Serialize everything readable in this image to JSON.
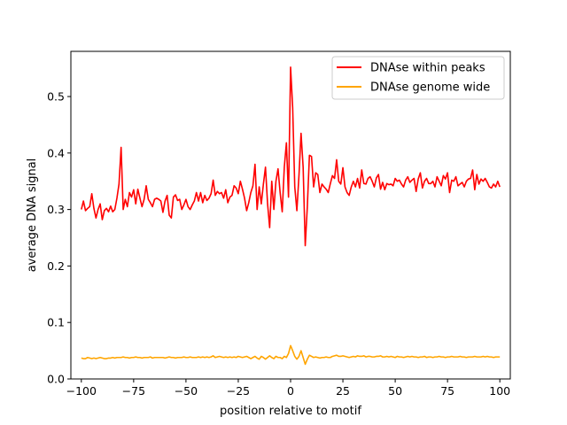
{
  "chart_data": {
    "type": "line",
    "title": "",
    "xlabel": "position relative to motif",
    "ylabel": "average DNA signal",
    "xlim": [
      -105,
      105
    ],
    "ylim": [
      0.0,
      0.58
    ],
    "xticks": [
      -100,
      -75,
      -50,
      -25,
      0,
      25,
      50,
      75,
      100
    ],
    "xtick_labels": [
      "−100",
      "−75",
      "−50",
      "−25",
      "0",
      "25",
      "50",
      "75",
      "100"
    ],
    "yticks": [
      0.0,
      0.1,
      0.2,
      0.3,
      0.4,
      0.5
    ],
    "ytick_labels": [
      "0.0",
      "0.1",
      "0.2",
      "0.3",
      "0.4",
      "0.5"
    ],
    "grid": false,
    "legend_position": "top-right",
    "series": [
      {
        "name": "DNAse within peaks",
        "color": "#ff0000",
        "x_start": -100,
        "x_step": 1,
        "values": [
          0.3,
          0.315,
          0.298,
          0.302,
          0.305,
          0.328,
          0.302,
          0.285,
          0.3,
          0.31,
          0.282,
          0.298,
          0.302,
          0.296,
          0.306,
          0.296,
          0.3,
          0.32,
          0.345,
          0.41,
          0.3,
          0.318,
          0.305,
          0.33,
          0.322,
          0.335,
          0.31,
          0.336,
          0.32,
          0.305,
          0.318,
          0.342,
          0.318,
          0.312,
          0.305,
          0.318,
          0.32,
          0.318,
          0.315,
          0.295,
          0.315,
          0.325,
          0.29,
          0.285,
          0.322,
          0.326,
          0.316,
          0.318,
          0.3,
          0.308,
          0.318,
          0.305,
          0.3,
          0.308,
          0.315,
          0.33,
          0.315,
          0.33,
          0.312,
          0.325,
          0.316,
          0.32,
          0.328,
          0.352,
          0.325,
          0.332,
          0.328,
          0.33,
          0.32,
          0.335,
          0.312,
          0.322,
          0.325,
          0.342,
          0.338,
          0.328,
          0.35,
          0.336,
          0.32,
          0.298,
          0.312,
          0.33,
          0.342,
          0.38,
          0.3,
          0.34,
          0.31,
          0.345,
          0.375,
          0.31,
          0.268,
          0.35,
          0.3,
          0.35,
          0.372,
          0.33,
          0.296,
          0.375,
          0.418,
          0.322,
          0.552,
          0.48,
          0.34,
          0.298,
          0.36,
          0.435,
          0.375,
          0.236,
          0.305,
          0.396,
          0.394,
          0.34,
          0.365,
          0.362,
          0.33,
          0.345,
          0.34,
          0.336,
          0.33,
          0.346,
          0.36,
          0.355,
          0.388,
          0.35,
          0.345,
          0.374,
          0.34,
          0.33,
          0.325,
          0.34,
          0.35,
          0.34,
          0.355,
          0.338,
          0.37,
          0.346,
          0.345,
          0.355,
          0.358,
          0.35,
          0.34,
          0.356,
          0.362,
          0.336,
          0.348,
          0.335,
          0.346,
          0.344,
          0.345,
          0.342,
          0.355,
          0.35,
          0.352,
          0.345,
          0.34,
          0.352,
          0.358,
          0.348,
          0.352,
          0.355,
          0.332,
          0.354,
          0.365,
          0.338,
          0.35,
          0.355,
          0.346,
          0.346,
          0.35,
          0.34,
          0.358,
          0.35,
          0.342,
          0.36,
          0.354,
          0.365,
          0.33,
          0.352,
          0.35,
          0.358,
          0.342,
          0.345,
          0.348,
          0.34,
          0.35,
          0.354,
          0.355,
          0.37,
          0.335,
          0.362,
          0.345,
          0.354,
          0.35,
          0.355,
          0.348,
          0.34,
          0.338,
          0.345,
          0.34,
          0.35,
          0.34
        ]
      },
      {
        "name": "DNAse genome wide",
        "color": "#ffa500",
        "x_start": -100,
        "x_step": 1,
        "values": [
          0.037,
          0.036,
          0.036,
          0.038,
          0.037,
          0.036,
          0.037,
          0.036,
          0.037,
          0.038,
          0.037,
          0.036,
          0.036,
          0.037,
          0.037,
          0.038,
          0.037,
          0.038,
          0.038,
          0.038,
          0.039,
          0.038,
          0.038,
          0.037,
          0.038,
          0.038,
          0.039,
          0.038,
          0.038,
          0.037,
          0.038,
          0.038,
          0.038,
          0.039,
          0.037,
          0.038,
          0.038,
          0.038,
          0.038,
          0.038,
          0.037,
          0.038,
          0.039,
          0.038,
          0.038,
          0.037,
          0.038,
          0.038,
          0.038,
          0.039,
          0.038,
          0.038,
          0.039,
          0.038,
          0.038,
          0.038,
          0.039,
          0.038,
          0.039,
          0.038,
          0.039,
          0.038,
          0.039,
          0.041,
          0.038,
          0.039,
          0.04,
          0.039,
          0.038,
          0.039,
          0.038,
          0.039,
          0.038,
          0.039,
          0.038,
          0.04,
          0.039,
          0.038,
          0.039,
          0.04,
          0.038,
          0.036,
          0.038,
          0.04,
          0.037,
          0.035,
          0.04,
          0.038,
          0.035,
          0.038,
          0.041,
          0.038,
          0.036,
          0.04,
          0.038,
          0.038,
          0.036,
          0.04,
          0.038,
          0.045,
          0.059,
          0.05,
          0.04,
          0.035,
          0.04,
          0.05,
          0.038,
          0.026,
          0.035,
          0.042,
          0.04,
          0.038,
          0.039,
          0.038,
          0.037,
          0.038,
          0.038,
          0.039,
          0.038,
          0.038,
          0.04,
          0.041,
          0.042,
          0.04,
          0.04,
          0.041,
          0.04,
          0.039,
          0.038,
          0.039,
          0.04,
          0.039,
          0.041,
          0.04,
          0.04,
          0.041,
          0.039,
          0.04,
          0.04,
          0.039,
          0.039,
          0.04,
          0.04,
          0.041,
          0.039,
          0.039,
          0.04,
          0.039,
          0.04,
          0.039,
          0.038,
          0.04,
          0.039,
          0.039,
          0.038,
          0.039,
          0.04,
          0.039,
          0.04,
          0.039,
          0.039,
          0.038,
          0.039,
          0.039,
          0.04,
          0.038,
          0.039,
          0.039,
          0.038,
          0.039,
          0.039,
          0.04,
          0.039,
          0.039,
          0.038,
          0.039,
          0.039,
          0.04,
          0.039,
          0.039,
          0.039,
          0.04,
          0.039,
          0.039,
          0.038,
          0.039,
          0.039,
          0.039,
          0.04,
          0.039,
          0.039,
          0.039,
          0.04,
          0.039,
          0.04,
          0.039,
          0.039,
          0.038,
          0.039,
          0.039,
          0.039
        ]
      }
    ]
  }
}
